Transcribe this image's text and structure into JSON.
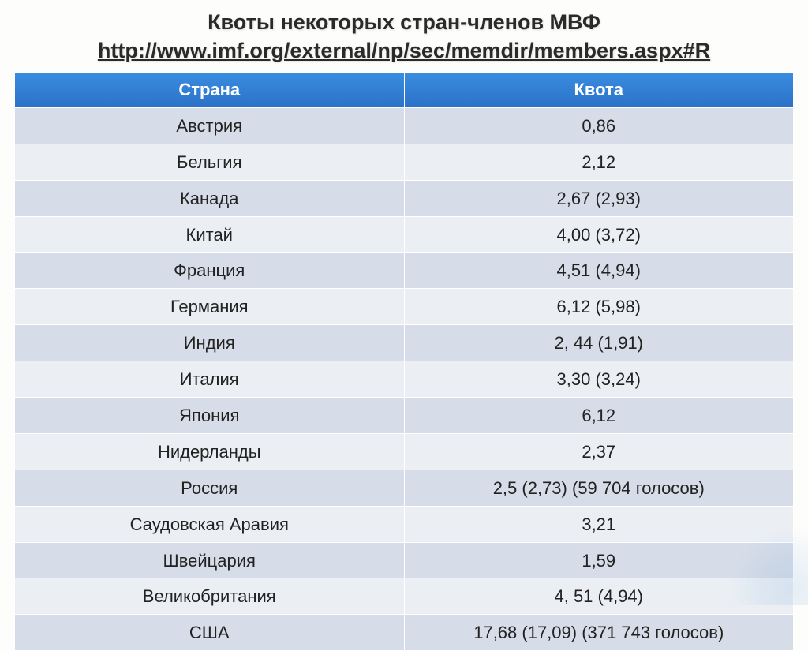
{
  "title_line1": "Квоты некоторых стран-членов МВФ",
  "title_line2": "http://www.imf.org/external/np/sec/memdir/members.aspx#R",
  "table": {
    "columns": [
      "Страна",
      "Квота"
    ],
    "header_bg": "#2f7dd4",
    "header_text_color": "#ffffff",
    "row_dark_bg": "#d6dde8",
    "row_light_bg": "#ebeff4",
    "text_color": "#222222",
    "font_size": 22,
    "rows": [
      {
        "country": "Австрия",
        "quota": "0,86"
      },
      {
        "country": "Бельгия",
        "quota": "2,12"
      },
      {
        "country": "Канада",
        "quota": "2,67  (2,93)"
      },
      {
        "country": "Китай",
        "quota": "4,00 (3,72)"
      },
      {
        "country": "Франция",
        "quota": "4,51 (4,94)"
      },
      {
        "country": "Германия",
        "quota": "6,12 (5,98)"
      },
      {
        "country": "Индия",
        "quota": "2, 44 (1,91)"
      },
      {
        "country": "Италия",
        "quota": "3,30 (3,24)"
      },
      {
        "country": "Япония",
        "quota": "6,12"
      },
      {
        "country": "Нидерланды",
        "quota": "2,37"
      },
      {
        "country": "Россия",
        "quota": "2,5  (2,73)  (59 704 голосов)"
      },
      {
        "country": "Саудовская Аравия",
        "quota": "3,21"
      },
      {
        "country": "Швейцария",
        "quota": "1,59"
      },
      {
        "country": "Великобритания",
        "quota": "4, 51 (4,94)"
      },
      {
        "country": "США",
        "quota": "17,68 (17,09) (371 743 голосов)"
      }
    ]
  },
  "background_color": "#fdfdfb"
}
